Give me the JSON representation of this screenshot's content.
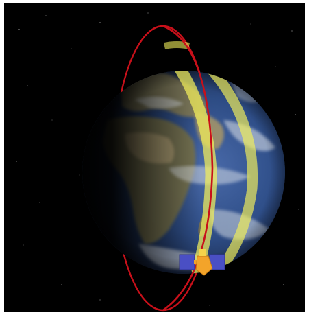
{
  "scene": {
    "subject": "earth-with-satellite-orbit",
    "colors": {
      "frame_border": "#ffffff",
      "space": "#000000",
      "orbit": "#c8101a",
      "swath": "#f2ef5a",
      "ocean": "#2b4c88",
      "land": "#8b7c55",
      "cloud": "#e8edf2",
      "satellite_panel": "#4a4fc4",
      "satellite_body": "#f3a42a"
    },
    "icons": [
      "earth-globe",
      "orbit-ring",
      "ground-track-swath",
      "satellite"
    ]
  }
}
